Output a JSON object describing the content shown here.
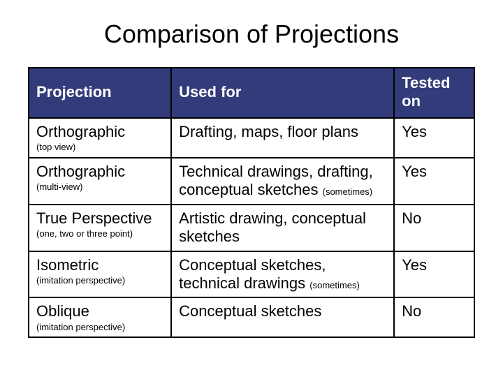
{
  "title": "Comparison of Projections",
  "colors": {
    "header_bg": "#333b7a",
    "header_text": "#ffffff",
    "cell_bg": "#ffffff",
    "cell_text": "#000000",
    "border": "#000000"
  },
  "table": {
    "columns": [
      "Projection",
      "Used for",
      "Tested on"
    ],
    "column_widths_pct": [
      32,
      50,
      18
    ],
    "header_fontsize": 22,
    "cell_fontsize": 22,
    "sub_fontsize": 13,
    "rows": [
      {
        "projection": "Orthographic",
        "projection_sub": "(top view)",
        "used_for": "Drafting, maps, floor plans",
        "used_for_sub": "",
        "tested_on": "Yes"
      },
      {
        "projection": "Orthographic",
        "projection_sub": "(multi-view)",
        "used_for": "Technical drawings, drafting,  conceptual sketches ",
        "used_for_sub": "(sometimes)",
        "tested_on": "Yes"
      },
      {
        "projection": "True Perspective",
        "projection_sub": "(one, two or three point)",
        "used_for": "Artistic drawing, conceptual sketches",
        "used_for_sub": "",
        "tested_on": "No"
      },
      {
        "projection": "Isometric",
        "projection_sub": "(imitation perspective)",
        "used_for": "Conceptual sketches, technical drawings ",
        "used_for_sub": "(sometimes)",
        "tested_on": "Yes"
      },
      {
        "projection": "Oblique",
        "projection_sub": "(imitation  perspective)",
        "used_for": "Conceptual sketches",
        "used_for_sub": "",
        "tested_on": "No"
      }
    ]
  }
}
